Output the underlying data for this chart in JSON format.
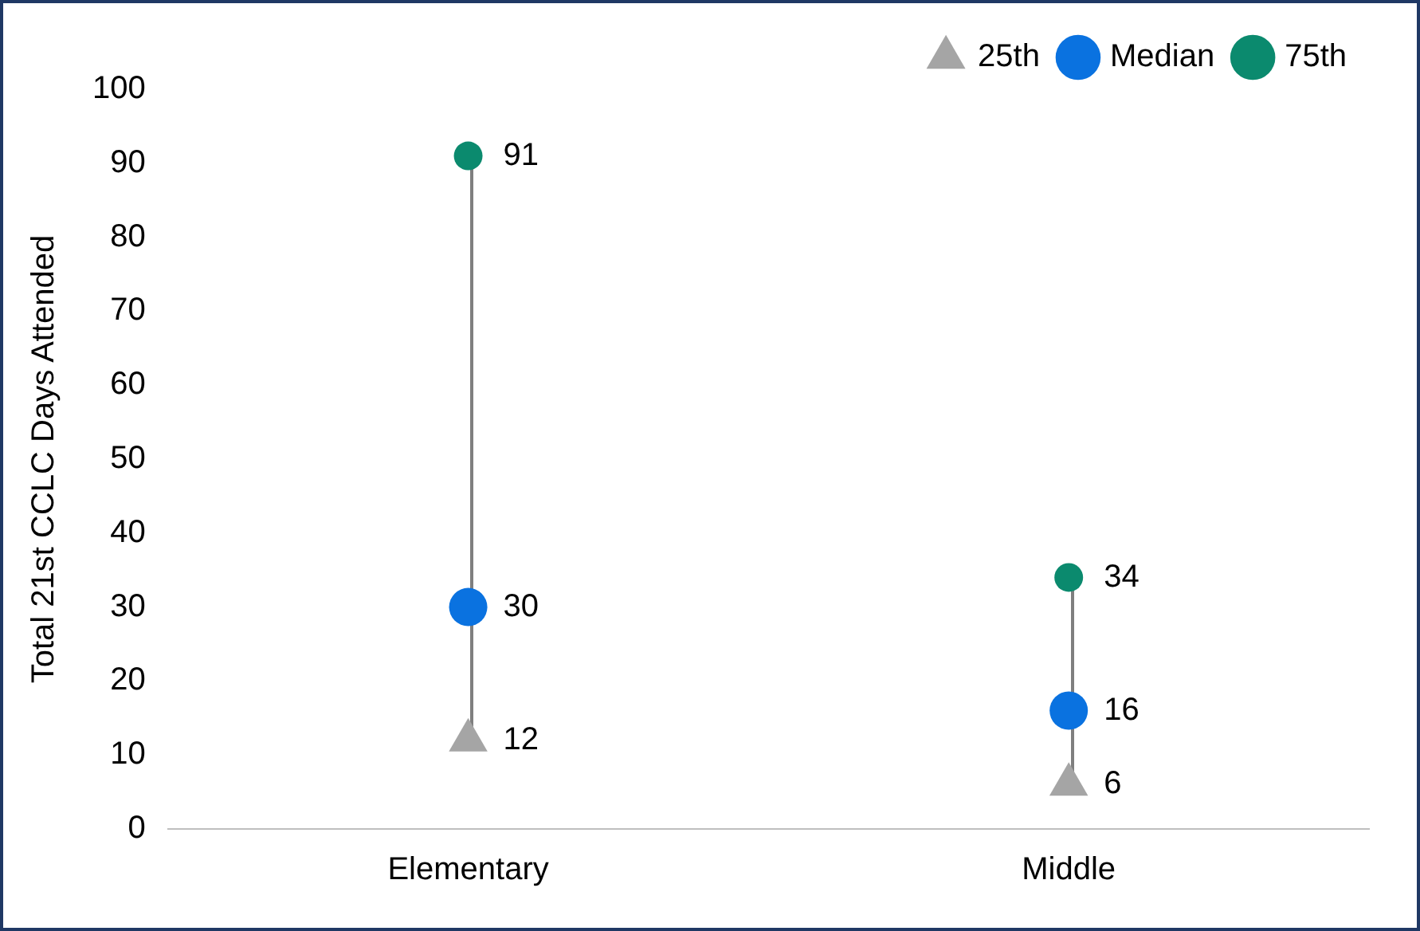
{
  "chart_data": {
    "type": "scatter",
    "ylabel": "Total 21st CCLC Days Attended",
    "categories": [
      "Elementary",
      "Middle"
    ],
    "series": [
      {
        "name": "25th",
        "color": "#a5a5a5",
        "marker": "triangle",
        "values": [
          12,
          6
        ]
      },
      {
        "name": "Median",
        "color": "#0a72e0",
        "marker": "circle",
        "values": [
          30,
          16
        ]
      },
      {
        "name": "75th",
        "color": "#0b8a6e",
        "marker": "circle",
        "values": [
          91,
          34
        ]
      }
    ],
    "ylim": [
      0,
      100
    ],
    "yticks": [
      0,
      10,
      20,
      30,
      40,
      50,
      60,
      70,
      80,
      90,
      100
    ],
    "grid": false,
    "legend": "top right",
    "data_labels": true
  }
}
